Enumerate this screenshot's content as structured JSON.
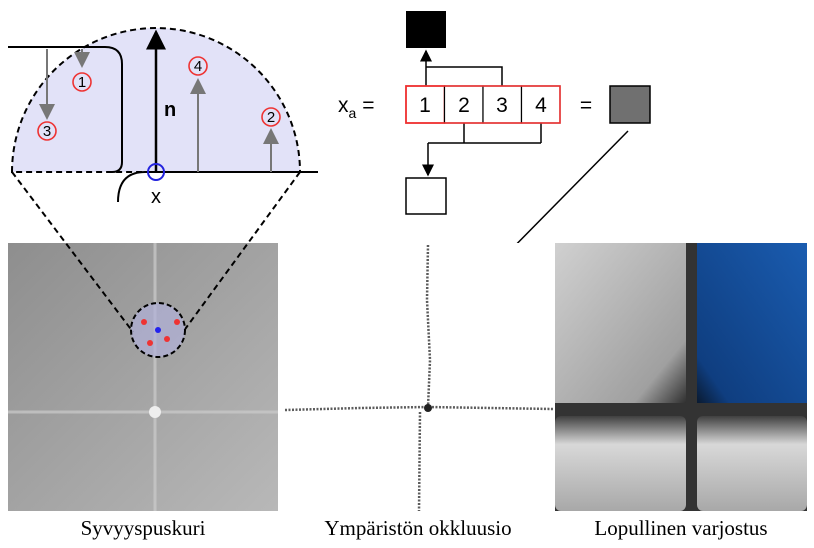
{
  "hemisphere": {
    "samples": [
      "1",
      "2",
      "3",
      "4"
    ],
    "normal": "n",
    "point": "x"
  },
  "array": {
    "variable": "x",
    "subscript": "a",
    "equals_left": "=",
    "cells": [
      "1",
      "2",
      "3",
      "4"
    ],
    "equals_right": "="
  },
  "captions": [
    "Syvyyspuskuri",
    "Ympäristön okkluusio",
    "Lopullinen varjostus"
  ]
}
